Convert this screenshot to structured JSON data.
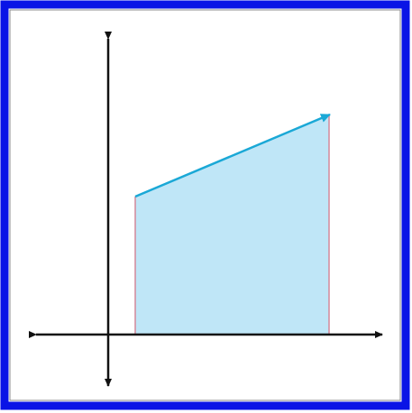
{
  "diagram": {
    "type": "area-under-line",
    "labels": [],
    "colors": {
      "border": "#0a14e6",
      "inner_border": "#6e6e6e",
      "background": "#ffffff",
      "axis": "#111111",
      "fill": "#bfe6f7",
      "slope_line": "#1aa8d6",
      "side_lines": "#d4889a"
    }
  }
}
